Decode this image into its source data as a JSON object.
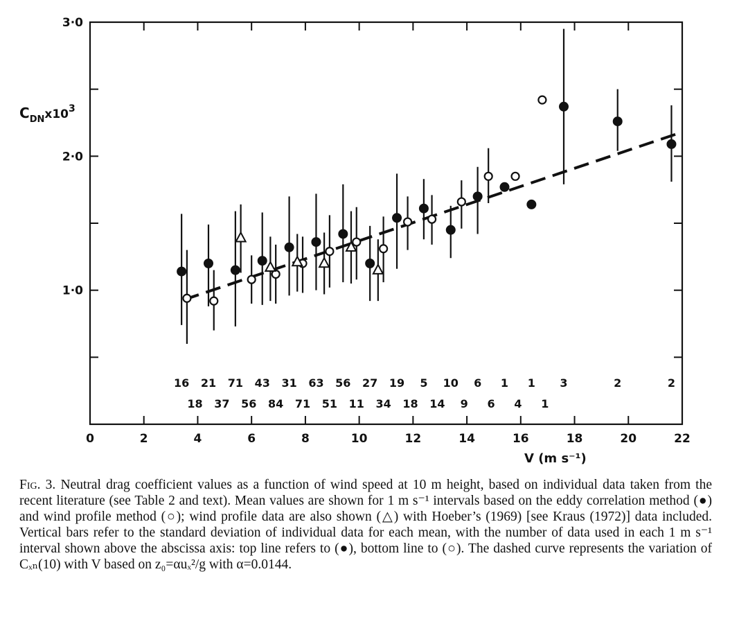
{
  "figure": {
    "ylabel_main": "C",
    "ylabel_sub": "DN",
    "ylabel_tail": "x10",
    "ylabel_exp": "3",
    "xlabel": "V (m s⁻¹)",
    "caption": {
      "label": "Fig. 3.",
      "text": " Neutral drag coefficient values as a function of wind speed at 10 m height, based on individual data taken from the recent literature (see Table 2 and text). Mean values are shown for 1 m s⁻¹ intervals based on the eddy correlation method (●) and wind profile method (○); wind profile data are also shown (△) with Hoeber’s (1969) [see Kraus (1972)] data included. Vertical bars refer to the standard deviation of individual data for each mean, with the number of data used in each 1 m s⁻¹ interval shown above the abscissa axis: top line refers to (●), bottom line to (○). The dashed curve represents the variation of Cₓₙ(10) with V based on z₀=αuₓ²/g with α=0.0144."
    }
  },
  "chart_data": {
    "type": "scatter",
    "xlabel": "V (m s⁻¹)",
    "ylabel": "CDN x10³",
    "xlim": [
      0,
      22
    ],
    "ylim": [
      0,
      3.0
    ],
    "x_ticks": [
      "0",
      "2",
      "4",
      "6",
      "8",
      "10",
      "12",
      "14",
      "16",
      "18",
      "20",
      "22"
    ],
    "y_ticks": [
      {
        "v": 1.0,
        "label": "1·0"
      },
      {
        "v": 2.0,
        "label": "2·0"
      },
      {
        "v": 3.0,
        "label": "3·0"
      }
    ],
    "y_minor": [
      0.5,
      1.5,
      2.5
    ],
    "grid": false,
    "series": [
      {
        "marker": "filled-circle",
        "points": [
          {
            "x": 3.4,
            "y": 1.14,
            "lo": 0.74,
            "hi": 1.57
          },
          {
            "x": 4.4,
            "y": 1.2,
            "lo": 0.88,
            "hi": 1.49
          },
          {
            "x": 5.4,
            "y": 1.15,
            "lo": 0.73,
            "hi": 1.59
          },
          {
            "x": 6.4,
            "y": 1.22,
            "lo": 0.89,
            "hi": 1.58
          },
          {
            "x": 7.4,
            "y": 1.32,
            "lo": 0.96,
            "hi": 1.7
          },
          {
            "x": 8.4,
            "y": 1.36,
            "lo": 1.0,
            "hi": 1.72
          },
          {
            "x": 9.4,
            "y": 1.42,
            "lo": 1.06,
            "hi": 1.79
          },
          {
            "x": 10.4,
            "y": 1.2,
            "lo": 0.92,
            "hi": 1.48
          },
          {
            "x": 11.4,
            "y": 1.54,
            "lo": 1.16,
            "hi": 1.87
          },
          {
            "x": 12.4,
            "y": 1.61,
            "lo": 1.38,
            "hi": 1.83
          },
          {
            "x": 13.4,
            "y": 1.45,
            "lo": 1.24,
            "hi": 1.63
          },
          {
            "x": 14.4,
            "y": 1.7,
            "lo": 1.42,
            "hi": 1.92
          },
          {
            "x": 15.4,
            "y": 1.77,
            "lo": null,
            "hi": null
          },
          {
            "x": 16.4,
            "y": 1.64,
            "lo": null,
            "hi": null
          },
          {
            "x": 17.6,
            "y": 2.37,
            "lo": 1.79,
            "hi": 2.95
          },
          {
            "x": 19.6,
            "y": 2.26,
            "lo": 2.04,
            "hi": 2.5
          },
          {
            "x": 21.6,
            "y": 2.09,
            "lo": 1.81,
            "hi": 2.38
          }
        ]
      },
      {
        "marker": "open-circle",
        "points": [
          {
            "x": 3.6,
            "y": 0.94,
            "lo": 0.6,
            "hi": 1.3
          },
          {
            "x": 4.6,
            "y": 0.92,
            "lo": 0.7,
            "hi": 1.15
          },
          {
            "x": 6.0,
            "y": 1.08,
            "lo": 0.9,
            "hi": 1.26
          },
          {
            "x": 6.9,
            "y": 1.12,
            "lo": 0.9,
            "hi": 1.34
          },
          {
            "x": 7.9,
            "y": 1.2,
            "lo": 0.98,
            "hi": 1.4
          },
          {
            "x": 8.9,
            "y": 1.29,
            "lo": 1.02,
            "hi": 1.56
          },
          {
            "x": 9.9,
            "y": 1.36,
            "lo": 1.08,
            "hi": 1.62
          },
          {
            "x": 10.9,
            "y": 1.31,
            "lo": 1.06,
            "hi": 1.55
          },
          {
            "x": 11.8,
            "y": 1.51,
            "lo": 1.3,
            "hi": 1.7
          },
          {
            "x": 12.7,
            "y": 1.53,
            "lo": 1.34,
            "hi": 1.71
          },
          {
            "x": 13.8,
            "y": 1.66,
            "lo": 1.46,
            "hi": 1.82
          },
          {
            "x": 14.8,
            "y": 1.85,
            "lo": 1.65,
            "hi": 2.06
          },
          {
            "x": 15.8,
            "y": 1.85,
            "lo": null,
            "hi": null
          },
          {
            "x": 16.8,
            "y": 2.42,
            "lo": null,
            "hi": null
          }
        ]
      },
      {
        "marker": "open-triangle",
        "points": [
          {
            "x": 5.6,
            "y": 1.39,
            "lo": 1.13,
            "hi": 1.64
          },
          {
            "x": 6.7,
            "y": 1.17,
            "lo": 0.92,
            "hi": 1.4
          },
          {
            "x": 7.7,
            "y": 1.21,
            "lo": 0.99,
            "hi": 1.42
          },
          {
            "x": 8.7,
            "y": 1.2,
            "lo": 0.97,
            "hi": 1.43
          },
          {
            "x": 9.7,
            "y": 1.32,
            "lo": 1.05,
            "hi": 1.59
          },
          {
            "x": 10.7,
            "y": 1.15,
            "lo": 0.92,
            "hi": 1.38
          }
        ]
      }
    ],
    "dashed_curve": [
      [
        3.5,
        0.93
      ],
      [
        22.0,
        2.18
      ]
    ],
    "counts_top": [
      {
        "x": 3.4,
        "label": "16"
      },
      {
        "x": 4.4,
        "label": "21"
      },
      {
        "x": 5.4,
        "label": "71"
      },
      {
        "x": 6.4,
        "label": "43"
      },
      {
        "x": 7.4,
        "label": "31"
      },
      {
        "x": 8.4,
        "label": "63"
      },
      {
        "x": 9.4,
        "label": "56"
      },
      {
        "x": 10.4,
        "label": "27"
      },
      {
        "x": 11.4,
        "label": "19"
      },
      {
        "x": 12.4,
        "label": "5"
      },
      {
        "x": 13.4,
        "label": "10"
      },
      {
        "x": 14.4,
        "label": "6"
      },
      {
        "x": 15.4,
        "label": "1"
      },
      {
        "x": 16.4,
        "label": "1"
      },
      {
        "x": 17.6,
        "label": "3"
      },
      {
        "x": 19.6,
        "label": "2"
      },
      {
        "x": 21.6,
        "label": "2"
      }
    ],
    "counts_bottom": [
      {
        "x": 3.9,
        "label": "18"
      },
      {
        "x": 4.9,
        "label": "37"
      },
      {
        "x": 5.9,
        "label": "56"
      },
      {
        "x": 6.9,
        "label": "84"
      },
      {
        "x": 7.9,
        "label": "71"
      },
      {
        "x": 8.9,
        "label": "51"
      },
      {
        "x": 9.9,
        "label": "11"
      },
      {
        "x": 10.9,
        "label": "34"
      },
      {
        "x": 11.9,
        "label": "18"
      },
      {
        "x": 12.9,
        "label": "14"
      },
      {
        "x": 13.9,
        "label": "9"
      },
      {
        "x": 14.9,
        "label": "6"
      },
      {
        "x": 15.9,
        "label": "4"
      },
      {
        "x": 16.9,
        "label": "1"
      }
    ]
  }
}
